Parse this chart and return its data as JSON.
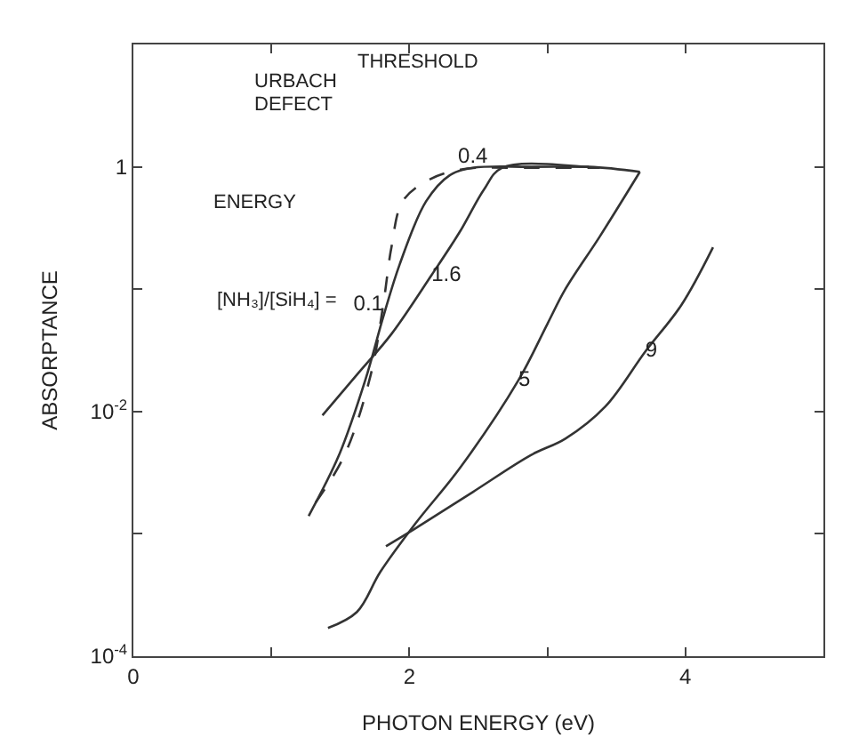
{
  "chart_data": {
    "type": "line",
    "xlabel": "PHOTON ENERGY (eV)",
    "ylabel": "ABSORPTANCE",
    "log": "y",
    "xlim": [
      0,
      5
    ],
    "xticks": [
      0,
      {
        "value": 1,
        "label": null
      },
      2,
      {
        "value": 3,
        "label": null
      },
      4,
      {
        "value": 5,
        "label": null
      }
    ],
    "ylim": [
      0.0001,
      10
    ],
    "yticks": [
      {
        "value": 0.0001,
        "label": "10$^{-4}$"
      },
      {
        "value": 0.001,
        "label": null
      },
      {
        "value": 0.01,
        "label": "10$^{-2}$"
      },
      {
        "value": 0.1,
        "label": null
      },
      1,
      {
        "value": 10,
        "label": null
      }
    ],
    "legend": false,
    "marker": "none",
    "series": [
      {
        "name": "0.1",
        "color": "#333333",
        "line_style": "dashed",
        "x": [
          1.32,
          1.53,
          1.72,
          1.81,
          1.87,
          1.95,
          2.12,
          2.37,
          2.88,
          3.38
        ],
        "values": [
          0.0018,
          0.0044,
          0.02,
          0.074,
          0.22,
          0.52,
          0.76,
          0.95,
          0.98,
          0.98
        ]
      },
      {
        "name": "0.4",
        "color": "#333333",
        "x": [
          1.27,
          1.49,
          1.68,
          1.81,
          1.93,
          2.12,
          2.29,
          2.46,
          2.88,
          3.3
        ],
        "values": [
          0.0014,
          0.0044,
          0.018,
          0.059,
          0.16,
          0.52,
          0.85,
          0.98,
          1.0,
          1.0
        ]
      },
      {
        "name": "1.6",
        "color": "#333333",
        "x": [
          1.37,
          1.62,
          1.87,
          2.16,
          2.37,
          2.54,
          2.67,
          3.3,
          3.67
        ],
        "values": [
          0.0093,
          0.02,
          0.043,
          0.13,
          0.3,
          0.65,
          0.98,
          1.0,
          0.91
        ]
      },
      {
        "name": "5",
        "color": "#333333",
        "x": [
          1.41,
          1.62,
          1.79,
          2.04,
          2.37,
          2.79,
          3.0,
          3.13,
          3.38,
          3.67
        ],
        "values": [
          0.00017,
          0.00023,
          0.00049,
          0.0012,
          0.0035,
          0.018,
          0.052,
          0.1,
          0.27,
          0.91
        ]
      },
      {
        "name": "9",
        "color": "#333333",
        "x": [
          1.83,
          2.04,
          2.46,
          2.88,
          3.13,
          3.42,
          3.71,
          3.97,
          4.2
        ],
        "values": [
          0.00079,
          0.0011,
          0.0022,
          0.0044,
          0.006,
          0.011,
          0.031,
          0.074,
          0.22
        ]
      }
    ],
    "annotations": [
      "THRESHOLD",
      "URBACH",
      "DEFECT",
      "ENERGY",
      "[NH₃]/[SiH₄] ="
    ]
  }
}
